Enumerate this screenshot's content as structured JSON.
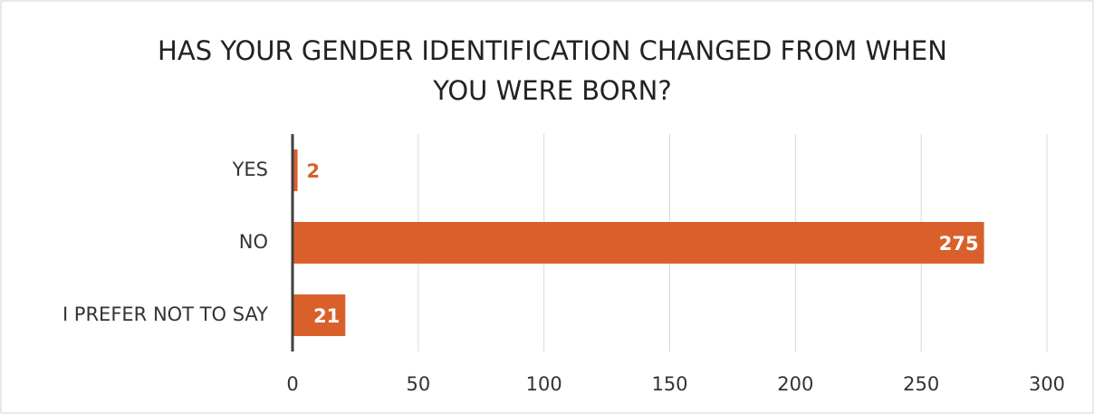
{
  "chart_data": {
    "type": "bar",
    "orientation": "horizontal",
    "title": "HAS YOUR GENDER IDENTIFICATION CHANGED FROM WHEN YOU WERE BORN?",
    "categories": [
      "YES",
      "NO",
      "I PREFER NOT TO SAY"
    ],
    "values": [
      2,
      275,
      21
    ],
    "color": "#d9602b",
    "xlim": [
      0,
      300
    ],
    "xticks": [
      0,
      50,
      100,
      150,
      200,
      250,
      300
    ],
    "grid": true
  }
}
